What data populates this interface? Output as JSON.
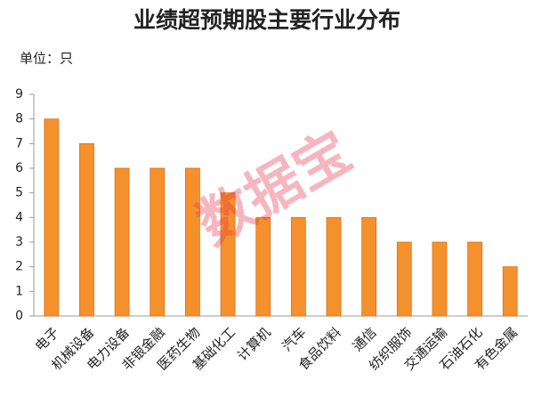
{
  "chart_data": {
    "type": "bar",
    "title": "业绩超预期股主要行业分布",
    "subtitle": "单位：只",
    "watermark": "数据宝",
    "categories": [
      "电子",
      "机械设备",
      "电力设备",
      "非银金融",
      "医药生物",
      "基础化工",
      "计算机",
      "汽车",
      "食品饮料",
      "通信",
      "纺织服饰",
      "交通运输",
      "石油石化",
      "有色金属"
    ],
    "values": [
      8,
      7,
      6,
      6,
      6,
      5,
      4,
      4,
      4,
      4,
      3,
      3,
      3,
      2
    ],
    "color": "#f5912c",
    "ylim": [
      0,
      9
    ],
    "yticks": [
      0,
      1,
      2,
      3,
      4,
      5,
      6,
      7,
      8,
      9
    ],
    "grid": false
  }
}
